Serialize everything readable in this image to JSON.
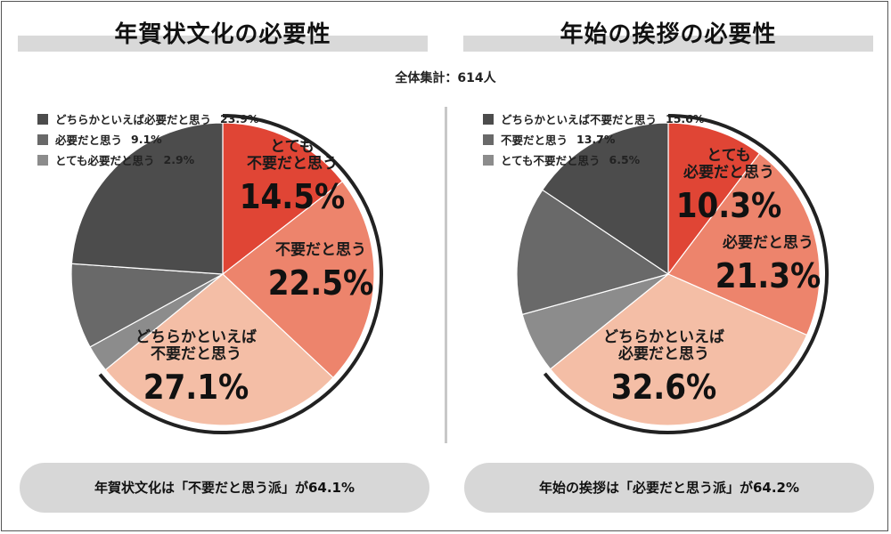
{
  "total_label": "全体集計：614人",
  "palette": {
    "very_unnecessary": "#e04535",
    "unnecessary": "#ed846c",
    "somewhat_unnecessary": "#f4bea6",
    "somewhat_necessary": "#4c4c4c",
    "necessary": "#696969",
    "very_necessary": "#8c8c8c",
    "ring": "#222222"
  },
  "chart_data": [
    {
      "type": "pie",
      "title": "年賀状文化の必要性",
      "slices": [
        {
          "label": "とても不要だと思う",
          "value": 14.5,
          "value_label": "14.5%",
          "label_lines": [
            "とても",
            "不要だと思う"
          ],
          "color_key": "very_unnecessary"
        },
        {
          "label": "不要だと思う",
          "value": 22.5,
          "value_label": "22.5%",
          "label_lines": [
            "不要だと思う"
          ],
          "color_key": "unnecessary"
        },
        {
          "label": "どちらかといえば不要だと思う",
          "value": 27.1,
          "value_label": "27.1%",
          "label_lines": [
            "どちらかといえば",
            "不要だと思う"
          ],
          "color_key": "somewhat_unnecessary"
        },
        {
          "label": "とても必要だと思う",
          "value": 2.9,
          "color_key": "very_necessary"
        },
        {
          "label": "必要だと思う",
          "value": 9.1,
          "color_key": "necessary"
        },
        {
          "label": "どちらかといえば必要だと思う",
          "value": 23.9,
          "color_key": "somewhat_necessary"
        }
      ],
      "legend": [
        {
          "label": "どちらかといえば必要だと思う",
          "value": "23.9%",
          "color_key": "somewhat_necessary"
        },
        {
          "label": "必要だと思う",
          "value": "9.1%",
          "color_key": "necessary"
        },
        {
          "label": "とても必要だと思う",
          "value": "2.9%",
          "color_key": "very_necessary"
        }
      ],
      "highlight_total": 64.1,
      "summary": "年賀状文化は「不要だと思う派」が64.1%"
    },
    {
      "type": "pie",
      "title": "年始の挨拶の必要性",
      "slices": [
        {
          "label": "とても必要だと思う",
          "value": 10.3,
          "value_label": "10.3%",
          "label_lines": [
            "とても",
            "必要だと思う"
          ],
          "color_key": "very_unnecessary"
        },
        {
          "label": "必要だと思う",
          "value": 21.3,
          "value_label": "21.3%",
          "label_lines": [
            "必要だと思う"
          ],
          "color_key": "unnecessary"
        },
        {
          "label": "どちらかといえば必要だと思う",
          "value": 32.6,
          "value_label": "32.6%",
          "label_lines": [
            "どちらかといえば",
            "必要だと思う"
          ],
          "color_key": "somewhat_unnecessary"
        },
        {
          "label": "とても不要だと思う",
          "value": 6.5,
          "color_key": "very_necessary"
        },
        {
          "label": "不要だと思う",
          "value": 13.7,
          "color_key": "necessary"
        },
        {
          "label": "どちらかといえば不要だと思う",
          "value": 15.6,
          "color_key": "somewhat_necessary"
        }
      ],
      "legend": [
        {
          "label": "どちらかといえば不要だと思う",
          "value": "15.6%",
          "color_key": "somewhat_necessary"
        },
        {
          "label": "不要だと思う",
          "value": "13.7%",
          "color_key": "necessary"
        },
        {
          "label": "とても不要だと思う",
          "value": "6.5%",
          "color_key": "very_necessary"
        }
      ],
      "highlight_total": 64.2,
      "summary": "年始の挨拶は「必要だと思う派」が64.2%"
    }
  ]
}
